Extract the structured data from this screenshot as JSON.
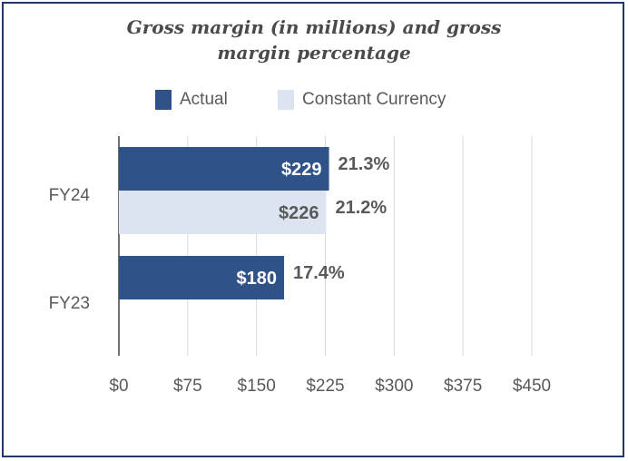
{
  "colors": {
    "actual": "#2f5289",
    "constant_currency": "#dce4f1",
    "frame": "#22386b",
    "text": "#595959",
    "title": "#4a4a4a",
    "grid": "#d9d9d9",
    "axis": "#404040"
  },
  "chart_data": {
    "type": "bar",
    "orientation": "horizontal",
    "title": "Gross margin (in millions) and gross margin percentage",
    "title_lines": [
      "Gross margin (in millions) and gross",
      "margin percentage"
    ],
    "xlabel": "",
    "ylabel": "",
    "xlim": [
      0,
      450
    ],
    "ticks": [
      0,
      75,
      150,
      225,
      300,
      375,
      450
    ],
    "tick_labels": [
      "$0",
      "$75",
      "$150",
      "$225",
      "$300",
      "$375",
      "$450"
    ],
    "grid": true,
    "legend_position": "top",
    "categories": [
      "FY24",
      "FY23"
    ],
    "series": [
      {
        "name": "Actual",
        "values": [
          229,
          180
        ],
        "value_labels": [
          "$229",
          "$180"
        ],
        "percent_labels": [
          "21.3%",
          "17.4%"
        ]
      },
      {
        "name": "Constant Currency",
        "values": [
          226,
          null
        ],
        "value_labels": [
          "$226",
          null
        ],
        "percent_labels": [
          "21.2%",
          null
        ]
      }
    ]
  }
}
